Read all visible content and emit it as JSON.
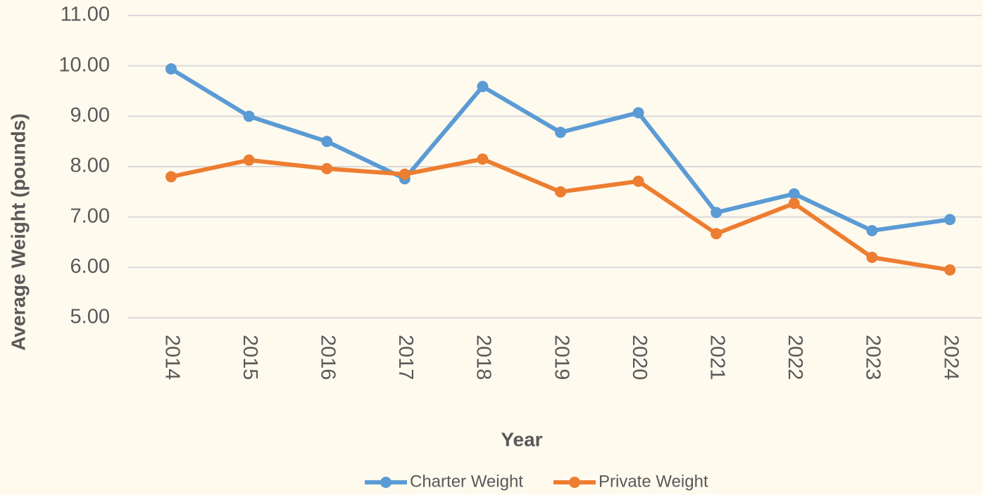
{
  "chart_data": {
    "type": "line",
    "y_label": "Average Weight (pounds)",
    "x_label": "Year",
    "categories": [
      "2014",
      "2015",
      "2016",
      "2017",
      "2018",
      "2019",
      "2020",
      "2021",
      "2022",
      "2023",
      "2024"
    ],
    "series": [
      {
        "name": "Charter Weight",
        "color": "#5b9bd5",
        "values": [
          9.94,
          9.0,
          8.5,
          7.76,
          9.59,
          8.68,
          9.07,
          7.09,
          7.46,
          6.73,
          6.95
        ]
      },
      {
        "name": "Private Weight",
        "color": "#ed7d31",
        "values": [
          7.8,
          8.13,
          7.96,
          7.85,
          8.15,
          7.5,
          7.71,
          6.67,
          7.27,
          6.2,
          5.95
        ]
      }
    ],
    "ylim": [
      5,
      11
    ],
    "yticks": [
      {
        "value": 5,
        "label": "5.00"
      },
      {
        "value": 6,
        "label": "6.00"
      },
      {
        "value": 7,
        "label": "7.00"
      },
      {
        "value": 8,
        "label": "8.00"
      },
      {
        "value": 9,
        "label": "9.00"
      },
      {
        "value": 10,
        "label": "10.00"
      },
      {
        "value": 11,
        "label": "11.00"
      }
    ],
    "grid": true,
    "legend": "bottom"
  }
}
